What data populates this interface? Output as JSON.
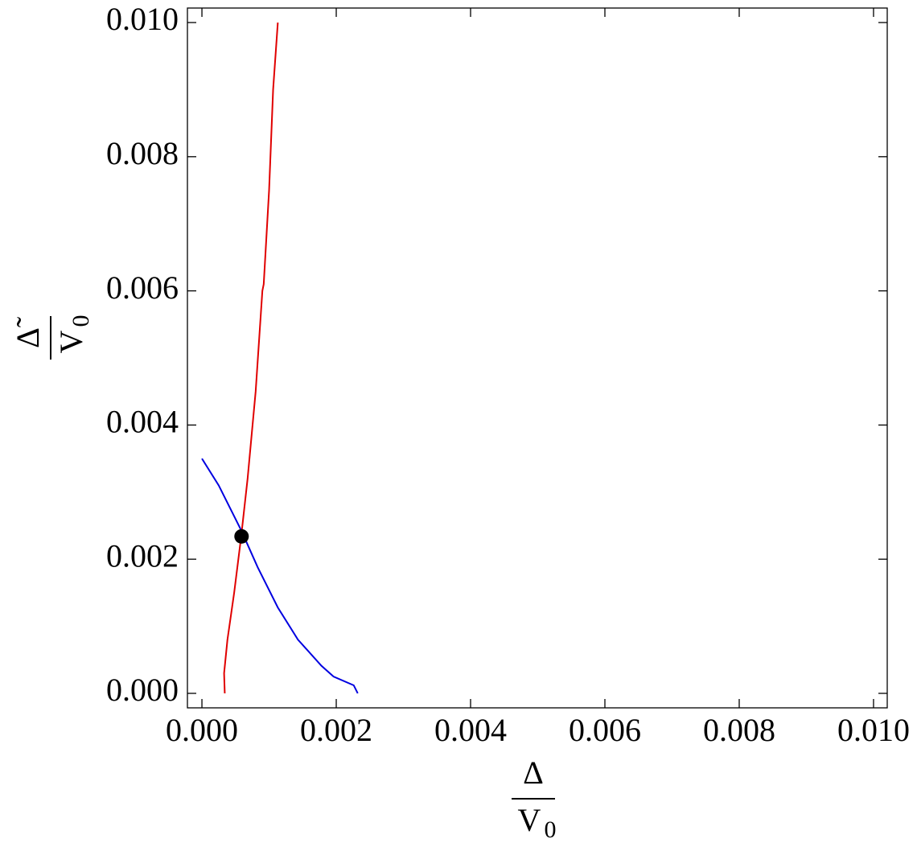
{
  "chart_data": {
    "type": "line",
    "xlabel": {
      "numerator": "Δ",
      "denominator": "V",
      "subscript": "0"
    },
    "ylabel": {
      "numerator": "Δ̃",
      "denominator": "V",
      "subscript": "0"
    },
    "series": [
      {
        "color": "#e00000",
        "x": [
          0.00034,
          0.00033,
          0.00038,
          0.00048,
          0.00058,
          0.00068,
          0.0008,
          0.0009,
          0.00092,
          0.001,
          0.00106,
          0.00113
        ],
        "values": [
          0,
          0.0003,
          0.0008,
          0.0015,
          0.0023,
          0.0032,
          0.0045,
          0.006,
          0.0061,
          0.0075,
          0.009,
          0.01
        ]
      },
      {
        "color": "#0000e0",
        "x": [
          0,
          0.00025,
          0.00059,
          0.00083,
          0.00113,
          0.00143,
          0.00178,
          0.00196,
          0.00226,
          0.00232
        ],
        "values": [
          0.0035,
          0.0031,
          0.00242,
          0.00188,
          0.00128,
          0.0008,
          0.00041,
          0.00025,
          0.00012,
          0
        ]
      }
    ],
    "points": [
      {
        "x": 0.00059,
        "y": 0.00234,
        "color": "#000000"
      }
    ],
    "xlim": [
      -0.000216,
      0.010204
    ],
    "ylim": [
      -0.000216,
      0.010216
    ],
    "xticks": [
      {
        "value": 0,
        "label": "0.000"
      },
      {
        "value": 0.002,
        "label": "0.002"
      },
      {
        "value": 0.004,
        "label": "0.004"
      },
      {
        "value": 0.006,
        "label": "0.006"
      },
      {
        "value": 0.008,
        "label": "0.008"
      },
      {
        "value": 0.01,
        "label": "0.010"
      }
    ],
    "yticks": [
      {
        "value": 0,
        "label": "0.000"
      },
      {
        "value": 0.002,
        "label": "0.002"
      },
      {
        "value": 0.004,
        "label": "0.004"
      },
      {
        "value": 0.006,
        "label": "0.006"
      },
      {
        "value": 0.008,
        "label": "0.008"
      },
      {
        "value": 0.01,
        "label": "0.010"
      }
    ]
  }
}
